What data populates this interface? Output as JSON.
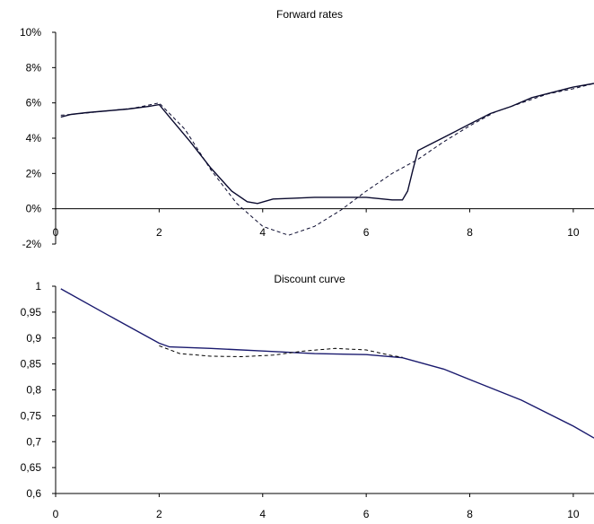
{
  "chart_data": [
    {
      "type": "line",
      "title": "Forward rates",
      "xlabel": "",
      "ylabel": "",
      "xlim": [
        0,
        10.4
      ],
      "ylim": [
        -2,
        10
      ],
      "x_ticks": [
        "0",
        "2",
        "4",
        "6",
        "8",
        "10"
      ],
      "y_ticks": [
        "10%",
        "8%",
        "6%",
        "4%",
        "2%",
        "0%",
        "-2%"
      ],
      "grid": false,
      "legend": "none",
      "series": [
        {
          "style": "solid",
          "color": "#0a0a2e",
          "x": [
            0.1,
            0.3,
            0.6,
            1.0,
            1.4,
            1.8,
            2.0,
            2.2,
            2.6,
            3.0,
            3.4,
            3.7,
            3.9,
            4.2,
            4.6,
            5.0,
            5.5,
            6.0,
            6.5,
            6.7,
            6.8,
            6.9,
            7.0,
            7.2,
            7.6,
            8.0,
            8.4,
            8.8,
            9.2,
            9.6,
            10.0,
            10.4
          ],
          "y": [
            5.2,
            5.35,
            5.45,
            5.55,
            5.65,
            5.8,
            5.9,
            5.2,
            3.8,
            2.3,
            1.0,
            0.4,
            0.3,
            0.55,
            0.6,
            0.65,
            0.65,
            0.65,
            0.5,
            0.5,
            1.0,
            2.2,
            3.3,
            3.6,
            4.2,
            4.8,
            5.4,
            5.8,
            6.3,
            6.6,
            6.9,
            7.1
          ]
        },
        {
          "style": "dashed",
          "color": "#0a0a2e",
          "x": [
            0.1,
            0.5,
            1.0,
            1.5,
            2.0,
            2.5,
            3.0,
            3.5,
            4.0,
            4.5,
            5.0,
            5.5,
            6.0,
            6.5,
            7.0,
            7.5,
            8.0,
            8.5,
            9.0,
            9.5,
            10.0,
            10.4
          ],
          "y": [
            5.3,
            5.4,
            5.55,
            5.7,
            6.0,
            4.5,
            2.2,
            0.3,
            -1.0,
            -1.5,
            -1.0,
            -0.1,
            1.0,
            2.0,
            2.8,
            3.8,
            4.7,
            5.5,
            6.0,
            6.5,
            6.8,
            7.1
          ]
        }
      ]
    },
    {
      "type": "line",
      "title": "Discount curve",
      "xlabel": "",
      "ylabel": "",
      "xlim": [
        0,
        10.4
      ],
      "ylim": [
        0.6,
        1.0
      ],
      "x_ticks": [
        "0",
        "2",
        "4",
        "6",
        "8",
        "10"
      ],
      "y_ticks": [
        "1",
        "0,95",
        "0,9",
        "0,85",
        "0,8",
        "0,75",
        "0,7",
        "0,65",
        "0,6"
      ],
      "grid": false,
      "legend": "none",
      "series": [
        {
          "style": "solid",
          "color": "#1a1a6e",
          "x": [
            0.1,
            1.0,
            2.0,
            2.2,
            3.0,
            4.0,
            5.0,
            6.0,
            6.7,
            7.5,
            8.0,
            9.0,
            10.0,
            10.4
          ],
          "y": [
            0.995,
            0.945,
            0.89,
            0.883,
            0.88,
            0.875,
            0.87,
            0.868,
            0.862,
            0.84,
            0.82,
            0.78,
            0.73,
            0.707
          ]
        },
        {
          "style": "dashed",
          "color": "#000000",
          "x": [
            2.0,
            2.4,
            3.0,
            3.6,
            4.2,
            4.8,
            5.4,
            6.0,
            6.5,
            6.7
          ],
          "y": [
            0.885,
            0.87,
            0.865,
            0.864,
            0.867,
            0.875,
            0.88,
            0.877,
            0.866,
            0.863
          ]
        }
      ]
    }
  ]
}
